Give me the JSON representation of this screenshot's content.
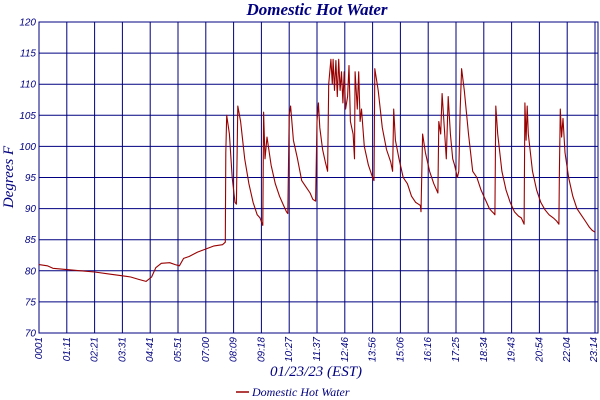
{
  "chart_data": {
    "type": "line",
    "title": "Domestic Hot Water",
    "xlabel": "01/23/23 (EST)",
    "ylabel": "Degrees F",
    "ylim": [
      70,
      120
    ],
    "yticks": [
      70,
      75,
      80,
      85,
      90,
      95,
      100,
      105,
      110,
      115,
      120
    ],
    "xticks": [
      "0001",
      "01:11",
      "02:21",
      "03:31",
      "04:41",
      "05:51",
      "07:00",
      "08:09",
      "09:18",
      "10:27",
      "11:37",
      "12:46",
      "13:56",
      "15:06",
      "16:16",
      "17:25",
      "18:34",
      "19:43",
      "20:54",
      "22:04",
      "23:14"
    ],
    "grid": true,
    "legend_position": "bottom-center",
    "series": [
      {
        "name": "Domestic Hot Water",
        "color": "#990000",
        "points": [
          [
            0,
            81
          ],
          [
            0.3,
            80.8
          ],
          [
            0.5,
            80.4
          ],
          [
            1,
            80.2
          ],
          [
            1.5,
            80
          ],
          [
            2,
            79.8
          ],
          [
            2.5,
            79.5
          ],
          [
            3,
            79.2
          ],
          [
            3.3,
            79
          ],
          [
            3.6,
            78.6
          ],
          [
            3.85,
            78.3
          ],
          [
            4.05,
            79
          ],
          [
            4.2,
            80.5
          ],
          [
            4.4,
            81.2
          ],
          [
            4.7,
            81.3
          ],
          [
            4.9,
            81
          ],
          [
            5.05,
            80.8
          ],
          [
            5.2,
            82
          ],
          [
            5.4,
            82.3
          ],
          [
            5.7,
            83
          ],
          [
            6,
            83.5
          ],
          [
            6.3,
            84
          ],
          [
            6.6,
            84.2
          ],
          [
            6.7,
            84.6
          ],
          [
            6.72,
            99
          ],
          [
            6.75,
            105
          ],
          [
            6.85,
            102
          ],
          [
            6.95,
            95
          ],
          [
            7.05,
            91
          ],
          [
            7.1,
            90.7
          ],
          [
            7.15,
            106.5
          ],
          [
            7.25,
            104
          ],
          [
            7.4,
            98
          ],
          [
            7.55,
            94
          ],
          [
            7.7,
            91
          ],
          [
            7.85,
            89
          ],
          [
            7.95,
            88.5
          ],
          [
            8.05,
            87.3
          ],
          [
            8.08,
            105.5
          ],
          [
            8.13,
            98
          ],
          [
            8.2,
            101.5
          ],
          [
            8.35,
            97
          ],
          [
            8.5,
            94
          ],
          [
            8.65,
            92
          ],
          [
            8.8,
            90.5
          ],
          [
            8.9,
            89.5
          ],
          [
            8.95,
            89.2
          ],
          [
            9.0,
            105
          ],
          [
            9.05,
            106.5
          ],
          [
            9.15,
            101
          ],
          [
            9.3,
            98
          ],
          [
            9.45,
            94.5
          ],
          [
            9.6,
            93.5
          ],
          [
            9.75,
            92.5
          ],
          [
            9.85,
            91.5
          ],
          [
            9.95,
            91.2
          ],
          [
            10.0,
            104
          ],
          [
            10.05,
            107
          ],
          [
            10.1,
            103
          ],
          [
            10.2,
            99.5
          ],
          [
            10.3,
            97.5
          ],
          [
            10.38,
            96
          ],
          [
            10.42,
            110
          ],
          [
            10.5,
            114
          ],
          [
            10.55,
            110
          ],
          [
            10.58,
            114
          ],
          [
            10.63,
            109
          ],
          [
            10.68,
            113.8
          ],
          [
            10.73,
            108
          ],
          [
            10.78,
            114
          ],
          [
            10.83,
            109
          ],
          [
            10.88,
            112
          ],
          [
            10.93,
            107
          ],
          [
            10.98,
            112
          ],
          [
            11.03,
            106
          ],
          [
            11.1,
            108
          ],
          [
            11.15,
            113
          ],
          [
            11.2,
            104
          ],
          [
            11.3,
            102
          ],
          [
            11.35,
            98
          ],
          [
            11.37,
            112
          ],
          [
            11.45,
            106
          ],
          [
            11.5,
            112
          ],
          [
            11.55,
            104
          ],
          [
            11.6,
            106
          ],
          [
            11.7,
            100
          ],
          [
            11.85,
            97
          ],
          [
            12.0,
            95
          ],
          [
            12.05,
            94.5
          ],
          [
            12.08,
            112.5
          ],
          [
            12.2,
            109
          ],
          [
            12.35,
            103
          ],
          [
            12.5,
            99.5
          ],
          [
            12.65,
            97.5
          ],
          [
            12.72,
            96
          ],
          [
            12.76,
            106
          ],
          [
            12.82,
            101
          ],
          [
            12.95,
            98
          ],
          [
            13.1,
            95
          ],
          [
            13.25,
            94
          ],
          [
            13.4,
            92
          ],
          [
            13.55,
            91
          ],
          [
            13.65,
            90.7
          ],
          [
            13.72,
            90.5
          ],
          [
            13.74,
            89.5
          ],
          [
            13.8,
            102
          ],
          [
            13.9,
            99
          ],
          [
            14.05,
            96
          ],
          [
            14.2,
            94
          ],
          [
            14.35,
            92.5
          ],
          [
            14.38,
            104
          ],
          [
            14.45,
            102
          ],
          [
            14.5,
            108.5
          ],
          [
            14.58,
            103
          ],
          [
            14.65,
            98
          ],
          [
            14.72,
            108
          ],
          [
            14.8,
            102
          ],
          [
            14.88,
            98
          ],
          [
            14.95,
            97
          ],
          [
            15.05,
            95
          ],
          [
            15.1,
            96
          ],
          [
            15.15,
            106
          ],
          [
            15.2,
            112.5
          ],
          [
            15.3,
            109
          ],
          [
            15.45,
            102
          ],
          [
            15.6,
            96
          ],
          [
            15.75,
            95
          ],
          [
            15.9,
            93
          ],
          [
            16.0,
            92
          ],
          [
            16.1,
            91
          ],
          [
            16.2,
            90
          ],
          [
            16.3,
            89.5
          ],
          [
            16.35,
            89.3
          ],
          [
            16.4,
            89
          ],
          [
            16.43,
            106.5
          ],
          [
            16.5,
            102
          ],
          [
            16.65,
            96
          ],
          [
            16.8,
            93
          ],
          [
            16.95,
            91
          ],
          [
            17.1,
            89.5
          ],
          [
            17.25,
            88.8
          ],
          [
            17.35,
            88.5
          ],
          [
            17.45,
            87.5
          ],
          [
            17.48,
            107
          ],
          [
            17.52,
            101
          ],
          [
            17.56,
            106.5
          ],
          [
            17.6,
            102
          ],
          [
            17.75,
            96
          ],
          [
            17.9,
            93
          ],
          [
            18.05,
            91
          ],
          [
            18.2,
            89.8
          ],
          [
            18.35,
            89
          ],
          [
            18.5,
            88.5
          ],
          [
            18.62,
            88
          ],
          [
            18.7,
            87.5
          ],
          [
            18.72,
            96
          ],
          [
            18.75,
            106
          ],
          [
            18.8,
            101.5
          ],
          [
            18.85,
            104.5
          ],
          [
            18.92,
            99
          ],
          [
            19.05,
            95
          ],
          [
            19.2,
            92
          ],
          [
            19.35,
            90
          ],
          [
            19.5,
            89
          ],
          [
            19.65,
            88
          ],
          [
            19.8,
            87
          ],
          [
            19.9,
            86.5
          ],
          [
            20.0,
            86.2
          ]
        ]
      }
    ]
  }
}
